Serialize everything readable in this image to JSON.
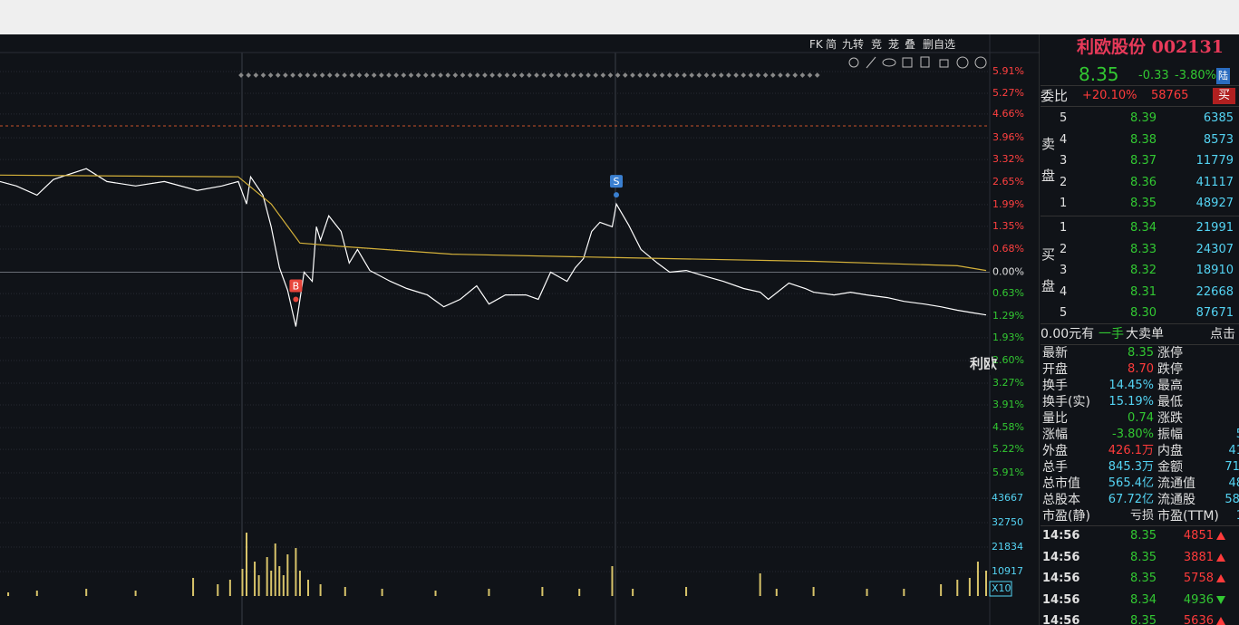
{
  "chart_data": [
    {
      "type": "line",
      "xlim": [
        0,
        240
      ],
      "ylim": [
        -5.91,
        5.91
      ],
      "yticks": [
        {
          "value": 5.91,
          "label": "5.91%"
        },
        {
          "value": 5.27,
          "label": "5.27%"
        },
        {
          "value": 4.66,
          "label": "4.66%"
        },
        {
          "value": 3.96,
          "label": "3.96%"
        },
        {
          "value": 3.32,
          "label": "3.32%"
        },
        {
          "value": 2.65,
          "label": "2.65%"
        },
        {
          "value": 1.99,
          "label": "1.99%"
        },
        {
          "value": 1.35,
          "label": "1.35%"
        },
        {
          "value": 0.68,
          "label": "0.68%"
        },
        {
          "value": 0,
          "label": "0.00%"
        },
        {
          "value": -0.63,
          "label": "0.63%"
        },
        {
          "value": -1.29,
          "label": "1.29%"
        },
        {
          "value": -1.93,
          "label": "1.93%"
        },
        {
          "value": -2.6,
          "label": "2.60%"
        },
        {
          "value": -3.27,
          "label": "3.27%"
        },
        {
          "value": -3.91,
          "label": "3.91%"
        },
        {
          "value": -4.58,
          "label": "4.58%"
        },
        {
          "value": -5.22,
          "label": "5.22%"
        },
        {
          "value": -5.91,
          "label": "5.91%"
        }
      ],
      "series": [
        {
          "color": "#ffffff",
          "x": [
            0,
            4,
            9,
            13,
            21,
            26,
            33,
            40,
            48,
            54,
            58,
            60,
            61,
            64,
            66,
            68,
            70,
            72,
            74,
            76,
            77,
            78,
            80,
            83,
            85,
            87,
            90,
            95,
            99,
            104,
            108,
            112,
            116,
            119,
            123,
            128,
            131,
            134,
            138,
            140,
            142,
            144,
            146,
            149,
            150,
            153,
            156,
            160,
            163,
            167,
            172,
            176,
            181,
            185,
            187,
            192,
            196,
            198,
            203,
            207,
            211,
            216,
            220,
            225,
            229,
            233,
            237,
            240
          ],
          "values": [
            2.67,
            2.54,
            2.27,
            2.73,
            3.05,
            2.67,
            2.54,
            2.67,
            2.41,
            2.54,
            2.67,
            2.01,
            2.81,
            2.27,
            1.34,
            0.13,
            -0.53,
            -1.6,
            0,
            -0.27,
            1.34,
            0.94,
            1.66,
            1.2,
            0.27,
            0.67,
            0.05,
            -0.27,
            -0.48,
            -0.67,
            -1.02,
            -0.8,
            -0.4,
            -0.94,
            -0.67,
            -0.67,
            -0.8,
            0,
            -0.27,
            0.13,
            0.4,
            1.2,
            1.47,
            1.34,
            2.01,
            1.39,
            0.67,
            0.27,
            0,
            0.05,
            -0.13,
            -0.27,
            -0.48,
            -0.59,
            -0.8,
            -0.32,
            -0.48,
            -0.59,
            -0.67,
            -0.59,
            -0.67,
            -0.75,
            -0.86,
            -0.94,
            -1.02,
            -1.12,
            -1.2,
            -1.26
          ]
        },
        {
          "color": "#d4b13a",
          "x": [
            0,
            58,
            66,
            73,
            84,
            110,
            150,
            198,
            233,
            240
          ],
          "values": [
            2.86,
            2.81,
            2.01,
            0.86,
            0.75,
            0.53,
            0.43,
            0.32,
            0.19,
            0.05
          ]
        }
      ],
      "annotations": [
        {
          "text": "B",
          "x": 72,
          "color": "#e8463c"
        },
        {
          "text": "S",
          "x": 150,
          "color": "#3a7fd0"
        }
      ],
      "label": "利欧"
    },
    {
      "type": "bar",
      "xlim": [
        0,
        240
      ],
      "y2lim": [
        0,
        43667
      ],
      "y2ticks": [
        43667,
        32750,
        21834,
        10917
      ],
      "unit_label": "X10",
      "color": "#d8c46a",
      "x": [
        2,
        9,
        21,
        33,
        47,
        53,
        56,
        59,
        60,
        62,
        63,
        65,
        66,
        67,
        68,
        69,
        70,
        72,
        73,
        75,
        78,
        84,
        93,
        106,
        119,
        132,
        141,
        149,
        154,
        167,
        185,
        189,
        198,
        211,
        220,
        229,
        233,
        236,
        238,
        240
      ],
      "values": [
        1617,
        2425,
        3233,
        2425,
        8083,
        5254,
        7275,
        12125,
        28291,
        15358,
        9296,
        17379,
        11317,
        23442,
        13337,
        9296,
        18592,
        21421,
        11317,
        7275,
        5254,
        4042,
        3233,
        2425,
        3233,
        4042,
        3233,
        13337,
        3233,
        4042,
        10104,
        3233,
        4042,
        3233,
        3233,
        5254,
        7275,
        8083,
        15358,
        11317
      ]
    }
  ],
  "toolbar": [
    "FK",
    "简",
    "九转",
    "竞",
    "茏",
    "叠",
    "删自选"
  ],
  "quote": {
    "name": "利欧股份 002131",
    "price": "8.35",
    "change": "-0.33",
    "pct": "-3.80%",
    "badge": "陆"
  },
  "weibi": {
    "label": "委比",
    "value": "+20.10%",
    "diff": "58765",
    "button": "买"
  },
  "sell": {
    "label": [
      "卖",
      "盘"
    ],
    "rows": [
      [
        "5",
        "8.39",
        "6385"
      ],
      [
        "4",
        "8.38",
        "8573"
      ],
      [
        "3",
        "8.37",
        "11779"
      ],
      [
        "2",
        "8.36",
        "41117"
      ],
      [
        "1",
        "8.35",
        "48927"
      ]
    ]
  },
  "buy": {
    "label": [
      "买",
      "盘"
    ],
    "rows": [
      [
        "1",
        "8.34",
        "21991"
      ],
      [
        "2",
        "8.33",
        "24307"
      ],
      [
        "3",
        "8.32",
        "18910"
      ],
      [
        "4",
        "8.31",
        "22668"
      ],
      [
        "5",
        "8.30",
        "87671"
      ]
    ]
  },
  "bar": [
    "0.00元有",
    "一手",
    "大卖单",
    "点击"
  ],
  "stats": {
    "left": [
      {
        "label": "最新",
        "value": "8.35",
        "color": "#32c832"
      },
      {
        "label": "开盘",
        "value": "8.70",
        "color": "#ff3b3b"
      },
      {
        "label": "换手",
        "value": "14.45%",
        "color": "#54d4f4"
      },
      {
        "label": "换手(实)",
        "value": "15.19%",
        "color": "#54d4f4"
      },
      {
        "label": "量比",
        "value": "0.74",
        "color": "#32c832"
      },
      {
        "label": "涨幅",
        "value": "-3.80%",
        "color": "#32c832"
      },
      {
        "label": "外盘",
        "value": "426.1万",
        "color": "#ff3b3b"
      },
      {
        "label": "总手",
        "value": "845.3万",
        "color": "#54d4f4"
      },
      {
        "label": "总市值",
        "value": "565.4亿",
        "color": "#54d4f4"
      },
      {
        "label": "总股本",
        "value": "67.72亿",
        "color": "#54d4f4"
      },
      {
        "label": "市盈(静)",
        "value": "亏损",
        "color": "#e0e0e0"
      }
    ],
    "right": [
      {
        "label": "涨停"
      },
      {
        "label": "跌停"
      },
      {
        "label": "最高"
      },
      {
        "label": "最低"
      },
      {
        "label": "涨跌"
      },
      {
        "label": "振幅",
        "value": "5"
      },
      {
        "label": "内盘",
        "value": "41"
      },
      {
        "label": "金额",
        "value": "71."
      },
      {
        "label": "流通值",
        "value": "48"
      },
      {
        "label": "流通股",
        "value": "58."
      },
      {
        "label": "市盈(TTM)",
        "value": "1"
      }
    ]
  },
  "ticks": [
    {
      "time": "14:56",
      "price": "8.35",
      "volume": "4851",
      "dir": "up"
    },
    {
      "time": "14:56",
      "price": "8.35",
      "volume": "3881",
      "dir": "up"
    },
    {
      "time": "14:56",
      "price": "8.35",
      "volume": "5758",
      "dir": "up"
    },
    {
      "time": "14:56",
      "price": "8.34",
      "volume": "4936",
      "dir": "down"
    },
    {
      "time": "14:56",
      "price": "8.35",
      "volume": "5636",
      "dir": "up"
    }
  ]
}
